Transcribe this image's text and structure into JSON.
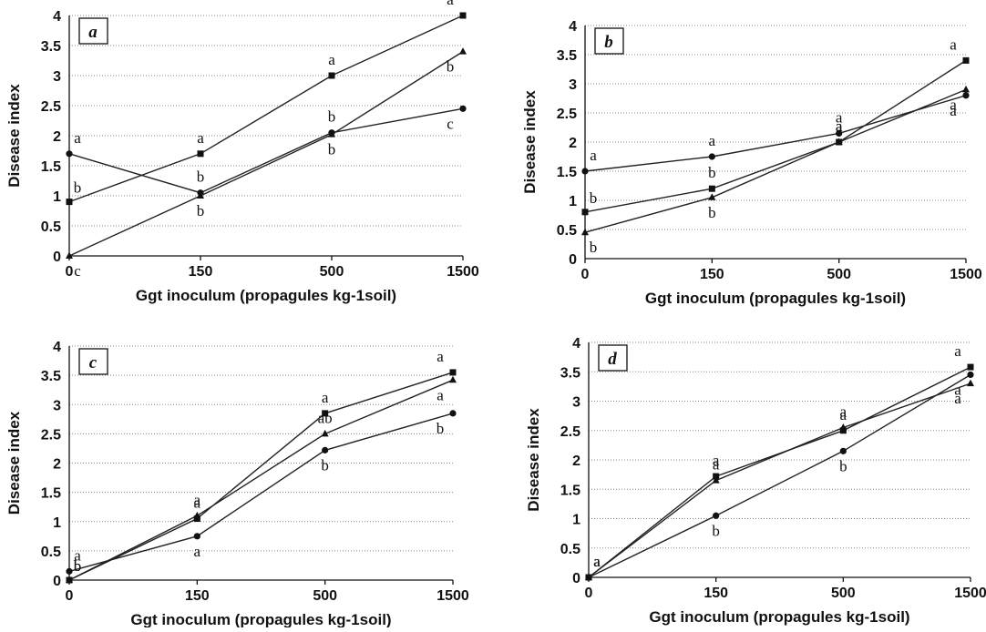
{
  "chart_data": [
    {
      "type": "line",
      "panel_label": "a",
      "categories": [
        "0",
        "150",
        "500",
        "1500"
      ],
      "ylim": [
        0,
        4
      ],
      "yticks": [
        "0",
        "0.5",
        "1",
        "1.5",
        "2",
        "2.5",
        "3",
        "3.5",
        "4"
      ],
      "xlabel": "Ggt inoculum (propagules kg-1soil)",
      "ylabel": "Disease index",
      "grid": true,
      "series": [
        {
          "marker": "square",
          "values": [
            0.9,
            1.7,
            3.0,
            4.0
          ],
          "letters": [
            "b",
            "a",
            "a",
            "a"
          ]
        },
        {
          "marker": "circle",
          "values": [
            1.7,
            1.05,
            2.05,
            2.45
          ],
          "letters": [
            "a",
            "b",
            "b",
            "c"
          ]
        },
        {
          "marker": "triangle",
          "values": [
            0.0,
            1.0,
            2.02,
            3.4
          ],
          "letters": [
            "c",
            "b",
            "b",
            "b"
          ]
        }
      ]
    },
    {
      "type": "line",
      "panel_label": "b",
      "categories": [
        "0",
        "150",
        "500",
        "1500"
      ],
      "ylim": [
        0,
        4
      ],
      "yticks": [
        "0",
        "0.5",
        "1",
        "1.5",
        "2",
        "2.5",
        "3",
        "3.5",
        "4"
      ],
      "xlabel": "Ggt inoculum (propagules kg-1soil)",
      "ylabel": "Disease index",
      "grid": true,
      "series": [
        {
          "marker": "square",
          "values": [
            0.8,
            1.2,
            2.0,
            3.4
          ],
          "letters": [
            "b",
            "b",
            "a",
            "a"
          ]
        },
        {
          "marker": "circle",
          "values": [
            1.5,
            1.75,
            2.15,
            2.8
          ],
          "letters": [
            "a",
            "a",
            "a",
            "a"
          ]
        },
        {
          "marker": "triangle",
          "values": [
            0.45,
            1.05,
            2.0,
            2.9
          ],
          "letters": [
            "b",
            "b",
            "a",
            "a"
          ]
        }
      ]
    },
    {
      "type": "line",
      "panel_label": "c",
      "categories": [
        "0",
        "150",
        "500",
        "1500"
      ],
      "ylim": [
        0,
        4
      ],
      "yticks": [
        "0",
        "0.5",
        "1",
        "1.5",
        "2",
        "2.5",
        "3",
        "3.5",
        "4"
      ],
      "xlabel": "Ggt inoculum (propagules kg-1soil)",
      "ylabel": "Disease index",
      "grid": true,
      "series": [
        {
          "marker": "square",
          "values": [
            0.0,
            1.05,
            2.85,
            3.55
          ],
          "letters": [
            "b",
            "a",
            "a",
            "a"
          ]
        },
        {
          "marker": "circle",
          "values": [
            0.15,
            0.75,
            2.22,
            2.85
          ],
          "letters": [
            "a",
            "a",
            "b",
            "b"
          ]
        },
        {
          "marker": "triangle",
          "values": [
            0.0,
            1.1,
            2.5,
            3.42
          ],
          "letters": [
            "b",
            "a",
            "ab",
            "a"
          ]
        }
      ]
    },
    {
      "type": "line",
      "panel_label": "d",
      "categories": [
        "0",
        "150",
        "500",
        "1500"
      ],
      "ylim": [
        0,
        4
      ],
      "yticks": [
        "0",
        "0.5",
        "1",
        "1.5",
        "2",
        "2.5",
        "3",
        "3.5",
        "4"
      ],
      "xlabel": "Ggt inoculum (propagules kg-1soil)",
      "ylabel": "Disease index",
      "grid": true,
      "series": [
        {
          "marker": "square",
          "values": [
            0.0,
            1.72,
            2.5,
            3.58
          ],
          "letters": [
            "a",
            "a",
            "a",
            "a"
          ]
        },
        {
          "marker": "circle",
          "values": [
            0.0,
            1.05,
            2.15,
            3.45
          ],
          "letters": [
            "a",
            "b",
            "b",
            "a"
          ]
        },
        {
          "marker": "triangle",
          "values": [
            0.0,
            1.65,
            2.55,
            3.3
          ],
          "letters": [
            "a",
            "a",
            "a",
            "a"
          ]
        }
      ]
    }
  ]
}
